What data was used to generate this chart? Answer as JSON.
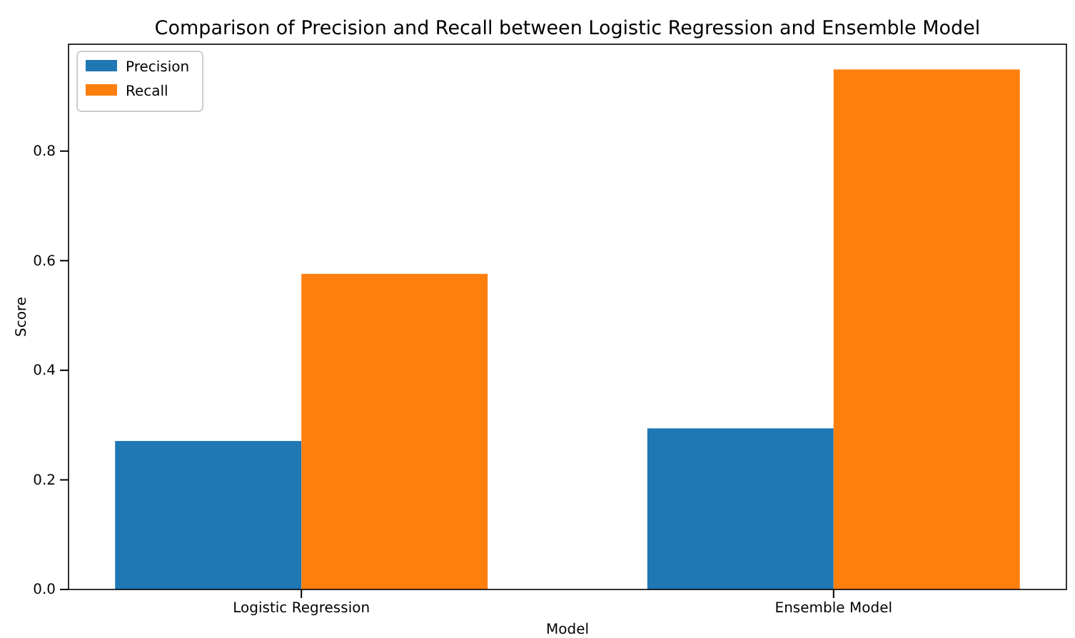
{
  "chart_data": {
    "type": "bar",
    "title": "Comparison of Precision and Recall between Logistic Regression and Ensemble Model",
    "xlabel": "Model",
    "ylabel": "Score",
    "categories": [
      "Logistic Regression",
      "Ensemble Model"
    ],
    "series": [
      {
        "name": "Precision",
        "color": "#1f77b4",
        "values": [
          0.271,
          0.294
        ]
      },
      {
        "name": "Recall",
        "color": "#ff7f0e",
        "values": [
          0.576,
          0.949
        ]
      }
    ],
    "ylim": [
      0,
      0.995
    ],
    "yticks": [
      {
        "value": 0,
        "label": "0.0"
      },
      {
        "value": 0.2,
        "label": "0.2"
      },
      {
        "value": 0.4,
        "label": "0.4"
      },
      {
        "value": 0.6,
        "label": "0.6"
      },
      {
        "value": 0.8,
        "label": "0.8"
      }
    ],
    "grid": false,
    "legend": "top left"
  }
}
